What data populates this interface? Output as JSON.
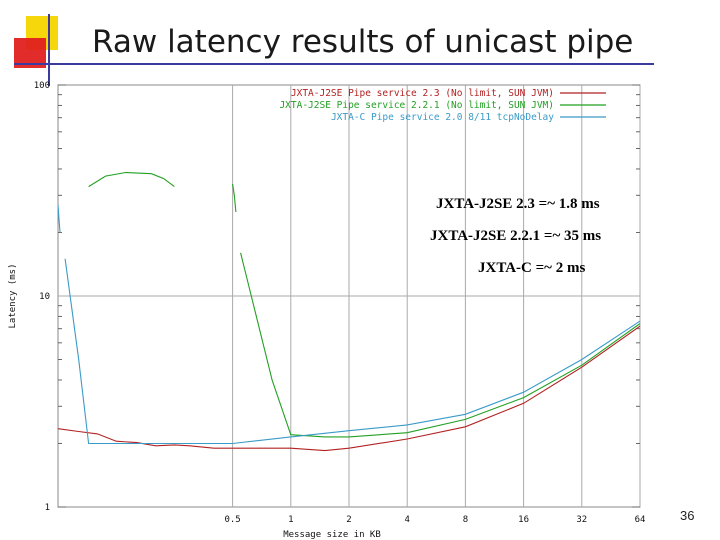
{
  "slide": {
    "title": "Raw latency results of unicast pipe",
    "page_number": "36"
  },
  "colors": {
    "red": "#b22222",
    "green": "#22a022",
    "blue": "#3a9bc8",
    "grid": "#aaaaaa",
    "accent_yellow": "#f5d70c",
    "accent_red": "#e02020",
    "accent_blue": "#3a3aa0"
  },
  "chart_data": {
    "type": "line",
    "xlabel": "Message size in KB",
    "ylabel": "Latency (ms)",
    "x_scale": "log",
    "y_scale": "log",
    "xlim": [
      0.0625,
      64
    ],
    "ylim": [
      1,
      100
    ],
    "grid": "vertical",
    "x_ticks": [
      {
        "value": 0.5,
        "label": "0.5"
      },
      {
        "value": 1,
        "label": "1"
      },
      {
        "value": 2,
        "label": "2"
      },
      {
        "value": 4,
        "label": "4"
      },
      {
        "value": 8,
        "label": "8"
      },
      {
        "value": 16,
        "label": "16"
      },
      {
        "value": 32,
        "label": "32"
      },
      {
        "value": 64,
        "label": "64"
      }
    ],
    "y_ticks": [
      {
        "value": 100,
        "label": "100"
      },
      {
        "value": 10,
        "label": "10"
      },
      {
        "value": 1,
        "label": "1"
      }
    ],
    "legend_position": "top-right",
    "series": [
      {
        "name": "JXTA-J2SE Pipe service 2.3 (No limit, SUN JVM)",
        "color": "#b22222",
        "points": [
          [
            0.0625,
            2.35
          ],
          [
            0.08,
            2.28
          ],
          [
            0.1,
            2.22
          ],
          [
            0.125,
            2.05
          ],
          [
            0.16,
            2.02
          ],
          [
            0.2,
            1.95
          ],
          [
            0.25,
            1.97
          ],
          [
            0.3,
            1.95
          ],
          [
            0.4,
            1.9
          ],
          [
            0.5,
            1.9
          ],
          [
            0.7,
            1.9
          ],
          [
            1,
            1.9
          ],
          [
            1.5,
            1.85
          ],
          [
            2,
            1.9
          ],
          [
            4,
            2.1
          ],
          [
            8,
            2.4
          ],
          [
            16,
            3.1
          ],
          [
            32,
            4.6
          ],
          [
            64,
            7.2
          ]
        ]
      },
      {
        "name": "JXTA-J2SE Pipe service 2.2.1 (No limit, SUN JVM)",
        "color": "#22a022",
        "segments": [
          [
            [
              0.09,
              33
            ],
            [
              0.11,
              37
            ],
            [
              0.14,
              38.5
            ],
            [
              0.19,
              38
            ],
            [
              0.22,
              36
            ],
            [
              0.25,
              33
            ]
          ],
          [
            [
              0.5,
              34
            ],
            [
              0.51,
              30
            ],
            [
              0.52,
              25
            ]
          ],
          [
            [
              0.55,
              16
            ],
            [
              0.8,
              4
            ],
            [
              1,
              2.2
            ],
            [
              1.5,
              2.15
            ],
            [
              2,
              2.15
            ],
            [
              4,
              2.25
            ],
            [
              8,
              2.6
            ],
            [
              16,
              3.3
            ],
            [
              32,
              4.7
            ],
            [
              64,
              7.4
            ]
          ]
        ]
      },
      {
        "name": "JXTA-C Pipe service 2.0 8/11 tcpNoDelay",
        "color": "#3a9bc8",
        "segments": [
          [
            [
              0.0625,
              27
            ],
            [
              0.064,
              20
            ]
          ],
          [
            [
              0.068,
              15
            ],
            [
              0.08,
              5
            ],
            [
              0.09,
              2.0
            ],
            [
              0.2,
              2.0
            ],
            [
              0.5,
              2.0
            ],
            [
              1,
              2.15
            ],
            [
              2,
              2.3
            ],
            [
              4,
              2.45
            ],
            [
              8,
              2.75
            ],
            [
              16,
              3.5
            ],
            [
              32,
              5.0
            ],
            [
              64,
              7.6
            ]
          ]
        ]
      }
    ],
    "annotations": [
      "JXTA-J2SE 2.3 =~ 1.8 ms",
      "JXTA-J2SE 2.2.1 =~ 35 ms",
      "JXTA-C =~ 2 ms"
    ]
  }
}
